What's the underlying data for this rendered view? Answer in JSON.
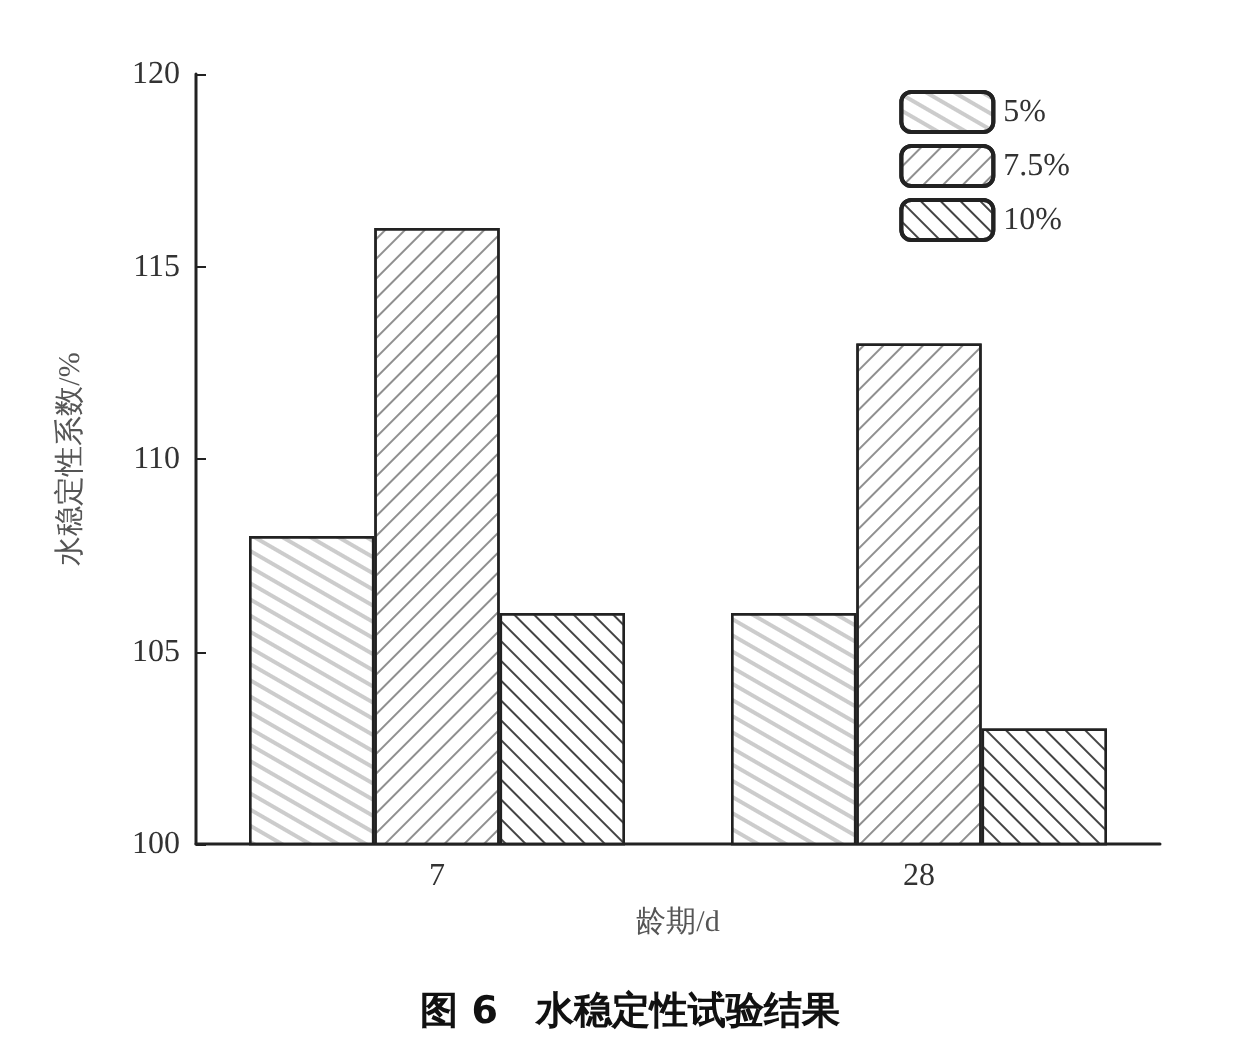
{
  "chart_data": {
    "type": "bar",
    "title": "图 6　水稳定性试验结果",
    "xlabel": "龄期/d",
    "ylabel": "水稳定性系数/%",
    "categories": [
      "7",
      "28"
    ],
    "series": [
      {
        "name": "5%",
        "color": "#ffffff",
        "values": [
          108,
          106
        ]
      },
      {
        "name": "7.5%",
        "color": "#ffffff",
        "values": [
          116,
          113
        ]
      },
      {
        "name": "10%",
        "color": "#ffffff",
        "values": [
          106,
          103
        ]
      }
    ],
    "ylim": [
      100,
      120
    ],
    "yticks": [
      100,
      105,
      110,
      115,
      120
    ],
    "grid": false,
    "legend": "top right"
  }
}
